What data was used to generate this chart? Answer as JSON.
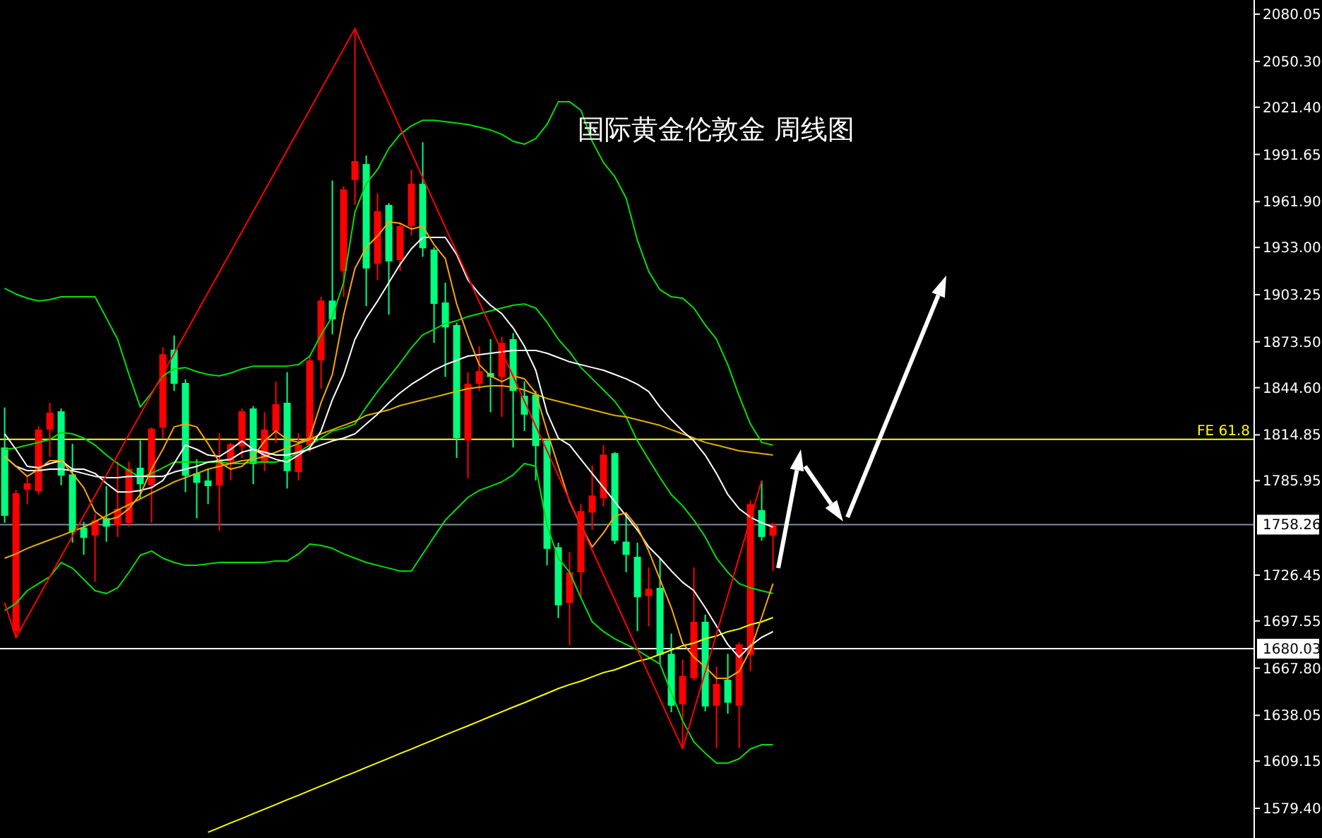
{
  "chart_data": {
    "type": "candlestick",
    "title": "国际黄金伦敦金 周线图",
    "categories": [
      null,
      null,
      null,
      null,
      null,
      null,
      null,
      null,
      null,
      null,
      null,
      null,
      null,
      null,
      null,
      null,
      null,
      null,
      null,
      null,
      null,
      null,
      null,
      null,
      null,
      null,
      null,
      null,
      null,
      null,
      null,
      null,
      null,
      null,
      null,
      null,
      null,
      null,
      null,
      null,
      null,
      null,
      null,
      null,
      null,
      null,
      null,
      null,
      null,
      null,
      null,
      null,
      null,
      null,
      null,
      null,
      null,
      null,
      null,
      null,
      null,
      null,
      null,
      null,
      null,
      null,
      null,
      null,
      null
    ],
    "ohlc": [
      [
        1806.9,
        1832.1,
        1759.4,
        1763.8
      ],
      [
        1691.1,
        1780.2,
        1686.6,
        1778.1
      ],
      [
        1780.2,
        1789.1,
        1771.2,
        1784.3
      ],
      [
        1779.3,
        1820.2,
        1777.2,
        1818.2
      ],
      [
        1818.2,
        1835.1,
        1801.0,
        1828.9
      ],
      [
        1829.7,
        1831.5,
        1783.1,
        1789.1
      ],
      [
        1789.9,
        1809.2,
        1746.9,
        1753.4
      ],
      [
        1756.4,
        1760.0,
        1739.2,
        1749.9
      ],
      [
        1751.4,
        1765.3,
        1722.2,
        1760.9
      ],
      [
        1762.3,
        1782.5,
        1747.5,
        1757.0
      ],
      [
        1757.9,
        1798.0,
        1750.5,
        1768.3
      ],
      [
        1759.4,
        1798.0,
        1757.0,
        1793.5
      ],
      [
        1794.1,
        1811.3,
        1774.2,
        1783.7
      ],
      [
        1783.1,
        1819.5,
        1759.4,
        1818.8
      ],
      [
        1819.4,
        1870.1,
        1812.8,
        1865.7
      ],
      [
        1868.6,
        1877.5,
        1842.5,
        1847.0
      ],
      [
        1847.6,
        1849.9,
        1778.7,
        1789.1
      ],
      [
        1790.6,
        1799.5,
        1762.3,
        1784.6
      ],
      [
        1786.1,
        1793.5,
        1771.2,
        1782.5
      ],
      [
        1783.1,
        1815.8,
        1754.3,
        1799.5
      ],
      [
        1798.0,
        1809.9,
        1786.1,
        1809.0
      ],
      [
        1807.5,
        1831.5,
        1800.3,
        1829.7
      ],
      [
        1831.5,
        1833.0,
        1783.7,
        1796.5
      ],
      [
        1798.0,
        1829.1,
        1792.0,
        1818.2
      ],
      [
        1817.3,
        1848.5,
        1809.9,
        1834.2
      ],
      [
        1835.1,
        1854.4,
        1781.0,
        1792.0
      ],
      [
        1791.4,
        1815.8,
        1786.1,
        1808.4
      ],
      [
        1808.4,
        1865.4,
        1803.9,
        1861.8
      ],
      [
        1861.8,
        1901.9,
        1844.0,
        1899.5
      ],
      [
        1899.5,
        1975.2,
        1878.2,
        1887.6
      ],
      [
        1918.2,
        1971.6,
        1901.9,
        1969.6
      ],
      [
        1975.5,
        2071.1,
        1959.8,
        1987.4
      ],
      [
        1985.6,
        1991.0,
        1896.0,
        1919.7
      ],
      [
        1922.7,
        1967.2,
        1912.3,
        1955.9
      ],
      [
        1959.8,
        1961.0,
        1890.6,
        1924.2
      ],
      [
        1925.1,
        1947.9,
        1918.2,
        1946.4
      ],
      [
        1946.4,
        1982.1,
        1940.5,
        1973.2
      ],
      [
        1973.2,
        1999.3,
        1927.1,
        1932.5
      ],
      [
        1931.6,
        1933.0,
        1872.8,
        1897.4
      ],
      [
        1898.3,
        1910.8,
        1851.4,
        1882.6
      ],
      [
        1884.1,
        1885.5,
        1800.3,
        1812.8
      ],
      [
        1811.3,
        1854.4,
        1787.6,
        1847.0
      ],
      [
        1847.0,
        1870.7,
        1842.5,
        1855.0
      ],
      [
        1853.8,
        1875.2,
        1829.1,
        1851.4
      ],
      [
        1851.4,
        1876.7,
        1826.2,
        1872.8
      ],
      [
        1875.2,
        1879.0,
        1806.9,
        1842.5
      ],
      [
        1839.5,
        1848.5,
        1817.3,
        1827.6
      ],
      [
        1840.2,
        1842.5,
        1786.1,
        1807.8
      ],
      [
        1811.3,
        1812.2,
        1732.6,
        1743.0
      ],
      [
        1744.0,
        1746.9,
        1699.4,
        1707.4
      ],
      [
        1708.9,
        1741.0,
        1682.2,
        1728.2
      ],
      [
        1728.2,
        1771.3,
        1711.9,
        1766.8
      ],
      [
        1765.9,
        1795.6,
        1754.9,
        1776.6
      ],
      [
        1774.8,
        1808.4,
        1769.8,
        1802.4
      ],
      [
        1803.3,
        1803.9,
        1746.0,
        1748.1
      ],
      [
        1747.5,
        1765.9,
        1728.2,
        1739.2
      ],
      [
        1738.0,
        1746.9,
        1691.1,
        1712.5
      ],
      [
        1713.3,
        1731.2,
        1694.1,
        1717.8
      ],
      [
        1718.4,
        1737.1,
        1670.3,
        1676.2
      ],
      [
        1676.8,
        1689.6,
        1640.0,
        1644.1
      ],
      [
        1645.0,
        1673.2,
        1616.8,
        1662.9
      ],
      [
        1661.4,
        1731.2,
        1659.9,
        1697.0
      ],
      [
        1697.0,
        1701.5,
        1640.6,
        1643.6
      ],
      [
        1644.1,
        1668.8,
        1617.4,
        1657.8
      ],
      [
        1660.5,
        1676.8,
        1639.1,
        1646.0
      ],
      [
        1644.1,
        1684.0,
        1617.4,
        1682.8
      ],
      [
        1676.2,
        1773.6,
        1665.8,
        1771.2
      ],
      [
        1767.4,
        1786.1,
        1748.1,
        1750.5
      ],
      [
        1751.3,
        1759.4,
        1729.1,
        1758.3
      ]
    ],
    "colors": [
      "#00ff7f",
      "#ff0000",
      "#ff0000",
      "#ff0000",
      "#ff0000",
      "#00ff7f",
      "#00ff7f",
      "#00ff7f",
      "#ff0000",
      "#00ff7f",
      "#ff0000",
      "#ff0000",
      "#00ff7f",
      "#ff0000",
      "#ff0000",
      "#00ff7f",
      "#00ff7f",
      "#00ff7f",
      "#00ff7f",
      "#ff0000",
      "#ff0000",
      "#ff0000",
      "#00ff7f",
      "#ff0000",
      "#ff0000",
      "#00ff7f",
      "#ff0000",
      "#ff0000",
      "#ff0000",
      "#00ff7f",
      "#ff0000",
      "#ff0000",
      "#00ff7f",
      "#ff0000",
      "#00ff7f",
      "#ff0000",
      "#ff0000",
      "#00ff7f",
      "#00ff7f",
      "#00ff7f",
      "#00ff7f",
      "#ff0000",
      "#ff0000",
      "#00ff7f",
      "#ff0000",
      "#00ff7f",
      "#00ff7f",
      "#00ff7f",
      "#00ff7f",
      "#00ff7f",
      "#ff0000",
      "#ff0000",
      "#ff0000",
      "#ff0000",
      "#00ff7f",
      "#00ff7f",
      "#00ff7f",
      "#ff0000",
      "#00ff7f",
      "#00ff7f",
      "#ff0000",
      "#ff0000",
      "#00ff7f",
      "#ff0000",
      "#00ff7f",
      "#ff0000",
      "#ff0000",
      "#00ff7f",
      "#ff0000"
    ],
    "series": [
      {
        "type": "line",
        "color": "#00e000",
        "values": [
          1907.2,
          1903.6,
          1901.0,
          1899.2,
          1900.1,
          1901.9,
          1901.9,
          1901.9,
          1901.9,
          1888.5,
          1875.1,
          1852.9,
          1832.4,
          1841.3,
          1852.0,
          1856.4,
          1857.3,
          1854.7,
          1852.9,
          1852.0,
          1853.8,
          1856.4,
          1858.2,
          1858.2,
          1858.2,
          1858.2,
          1859.1,
          1864.5,
          1877.9,
          1889.4,
          1910.8,
          1955.3,
          1973.2,
          1982.1,
          1995.4,
          2004.3,
          2009.7,
          2013.2,
          2013.2,
          2012.3,
          2011.4,
          2010.5,
          2008.8,
          2007.0,
          2004.3,
          1999.9,
          1998.1,
          2001.6,
          2010.5,
          2024.8,
          2024.8,
          2019.5,
          1999.9,
          1986.5,
          1977.6,
          1964.2,
          1937.5,
          1917.9,
          1906.3,
          1901.9,
          1901.0,
          1894.8,
          1884.1,
          1875.1,
          1859.1,
          1839.5,
          1821.7,
          1810.1,
          1808.4
        ]
      },
      {
        "type": "line",
        "color": "#00e000",
        "values": [
          1805.7,
          1806.6,
          1808.4,
          1810.1,
          1811.9,
          1816.4,
          1815.5,
          1812.8,
          1808.4,
          1802.1,
          1796.8,
          1792.3,
          1787.9,
          1790.5,
          1794.1,
          1797.7,
          1797.7,
          1797.7,
          1797.7,
          1797.7,
          1796.8,
          1796.8,
          1797.7,
          1797.7,
          1797.7,
          1799.4,
          1803.9,
          1808.4,
          1812.8,
          1817.3,
          1819.0,
          1821.7,
          1832.4,
          1842.2,
          1851.1,
          1860.1,
          1869.8,
          1877.9,
          1881.4,
          1885.0,
          1886.8,
          1889.4,
          1891.2,
          1893.0,
          1894.8,
          1896.6,
          1897.4,
          1894.8,
          1885.9,
          1875.1,
          1867.1,
          1857.3,
          1850.2,
          1843.1,
          1836.0,
          1826.2,
          1811.0,
          1799.4,
          1787.9,
          1777.2,
          1770.1,
          1761.1,
          1750.5,
          1737.1,
          1728.2,
          1721.1,
          1718.4,
          1716.6,
          1714.8
        ]
      },
      {
        "type": "line",
        "color": "#00e000",
        "values": [
          1704.1,
          1708.6,
          1716.6,
          1721.1,
          1725.5,
          1734.4,
          1730.8,
          1723.7,
          1716.6,
          1714.8,
          1718.4,
          1728.2,
          1738.9,
          1741.6,
          1737.1,
          1734.4,
          1732.6,
          1732.6,
          1733.5,
          1734.4,
          1734.4,
          1734.4,
          1734.4,
          1734.4,
          1735.3,
          1735.3,
          1739.8,
          1746.0,
          1745.1,
          1743.3,
          1739.8,
          1737.1,
          1734.4,
          1732.6,
          1730.8,
          1729.0,
          1729.0,
          1739.8,
          1750.5,
          1761.1,
          1768.3,
          1775.4,
          1779.8,
          1782.5,
          1785.2,
          1789.6,
          1796.8,
          1795.0,
          1757.6,
          1737.1,
          1728.2,
          1712.1,
          1697.0,
          1690.8,
          1686.3,
          1682.7,
          1679.2,
          1674.7,
          1670.3,
          1652.4,
          1634.6,
          1621.3,
          1614.2,
          1607.9,
          1607.9,
          1610.6,
          1616.8,
          1619.5,
          1619.5
        ]
      },
      {
        "type": "line",
        "color": "#e0b000",
        "values": [
          1737.1,
          1739.8,
          1743.3,
          1746.0,
          1748.7,
          1751.3,
          1754.0,
          1756.7,
          1760.2,
          1763.8,
          1767.4,
          1770.9,
          1774.5,
          1778.1,
          1781.6,
          1785.2,
          1787.9,
          1790.5,
          1793.2,
          1795.0,
          1796.8,
          1798.6,
          1799.4,
          1801.2,
          1803.9,
          1806.6,
          1809.3,
          1811.9,
          1815.5,
          1818.1,
          1820.8,
          1823.5,
          1827.1,
          1828.9,
          1830.6,
          1833.3,
          1835.1,
          1836.9,
          1838.6,
          1840.4,
          1842.2,
          1844.0,
          1844.9,
          1845.8,
          1845.8,
          1844.9,
          1843.1,
          1840.4,
          1837.8,
          1836.0,
          1834.2,
          1832.4,
          1830.6,
          1828.9,
          1827.1,
          1826.2,
          1824.4,
          1822.6,
          1820.8,
          1818.1,
          1815.5,
          1812.8,
          1810.1,
          1808.4,
          1806.6,
          1804.8,
          1803.9,
          1803.0,
          1802.1
        ]
      },
      {
        "type": "line",
        "color": "#ffff00",
        "values": [
          null,
          null,
          null,
          null,
          null,
          null,
          null,
          null,
          null,
          null,
          null,
          null,
          null,
          null,
          null,
          null,
          null,
          null,
          1564.3,
          1567.2,
          1570.2,
          1573.0,
          1576.0,
          1578.9,
          1581.8,
          1584.8,
          1587.6,
          1590.6,
          1593.5,
          1596.4,
          1599.4,
          1602.2,
          1605.2,
          1608.1,
          1611.0,
          1614.0,
          1616.8,
          1619.8,
          1622.7,
          1625.7,
          1628.6,
          1631.4,
          1634.4,
          1637.3,
          1640.3,
          1643.2,
          1646.0,
          1649.0,
          1651.9,
          1654.9,
          1657.4,
          1659.6,
          1662.3,
          1665.0,
          1666.7,
          1669.4,
          1672.1,
          1673.8,
          1676.5,
          1679.2,
          1681.9,
          1683.6,
          1686.3,
          1688.1,
          1690.8,
          1692.5,
          1695.2,
          1697.0,
          1699.7
        ]
      },
      {
        "type": "line",
        "color": "#ffffff",
        "values": [
          1815.5,
          1805.7,
          1795.0,
          1794.1,
          1796.8,
          1798.6,
          1793.2,
          1793.2,
          1790.5,
          1784.3,
          1778.9,
          1778.9,
          1779.8,
          1781.6,
          1786.1,
          1796.8,
          1808.4,
          1805.7,
          1802.1,
          1801.2,
          1805.7,
          1811.0,
          1805.7,
          1802.1,
          1799.4,
          1797.7,
          1802.1,
          1806.6,
          1817.3,
          1836.9,
          1852.9,
          1875.1,
          1888.5,
          1899.2,
          1910.8,
          1922.4,
          1932.2,
          1939.3,
          1939.3,
          1939.3,
          1928.6,
          1912.6,
          1903.7,
          1896.6,
          1891.2,
          1882.3,
          1870.7,
          1855.6,
          1828.9,
          1812.8,
          1808.4,
          1799.4,
          1790.5,
          1781.6,
          1772.7,
          1763.8,
          1754.9,
          1744.2,
          1737.1,
          1729.1,
          1721.9,
          1716.6,
          1705.9,
          1694.3,
          1682.7,
          1674.7,
          1681.9,
          1687.2,
          1690.8
        ]
      },
      {
        "type": "line",
        "color": "#ffffff",
        "values": [
          1801.2,
          1795.0,
          1792.3,
          1792.3,
          1793.2,
          1793.2,
          1792.3,
          1790.5,
          1788.7,
          1787.9,
          1787.9,
          1788.7,
          1788.7,
          1788.7,
          1788.7,
          1791.4,
          1793.2,
          1795.0,
          1797.7,
          1798.6,
          1799.4,
          1803.9,
          1805.7,
          1803.9,
          1802.1,
          1802.1,
          1803.9,
          1805.7,
          1808.4,
          1811.0,
          1812.8,
          1815.5,
          1821.7,
          1827.9,
          1835.1,
          1841.3,
          1846.7,
          1851.1,
          1855.6,
          1859.1,
          1861.8,
          1864.5,
          1865.4,
          1866.3,
          1867.2,
          1868.1,
          1868.1,
          1868.1,
          1866.3,
          1863.6,
          1860.9,
          1859.1,
          1857.3,
          1855.6,
          1852.9,
          1850.2,
          1846.7,
          1842.2,
          1832.4,
          1824.4,
          1817.3,
          1811.0,
          1802.1,
          1790.5,
          1777.2,
          1768.3,
          1762.9,
          1759.4,
          1756.7
        ]
      },
      {
        "type": "line",
        "color": "#ffa500",
        "values": [
          1801.2,
          1795.0,
          1788.7,
          1793.2,
          1798.6,
          1798.6,
          1790.5,
          1781.6,
          1766.5,
          1761.1,
          1762.9,
          1768.3,
          1777.2,
          1793.2,
          1805.7,
          1819.9,
          1821.7,
          1819.9,
          1809.3,
          1797.7,
          1793.2,
          1795.0,
          1801.2,
          1811.0,
          1817.3,
          1811.9,
          1810.1,
          1812.8,
          1835.1,
          1852.9,
          1890.3,
          1919.7,
          1933.1,
          1940.2,
          1949.1,
          1948.2,
          1944.6,
          1946.4,
          1934.8,
          1925.9,
          1897.4,
          1877.0,
          1859.1,
          1852.0,
          1848.4,
          1852.0,
          1850.2,
          1841.3,
          1817.3,
          1795.0,
          1772.7,
          1757.6,
          1744.2,
          1753.1,
          1763.8,
          1765.6,
          1756.7,
          1741.6,
          1723.7,
          1705.9,
          1683.6,
          1674.7,
          1668.5,
          1661.4,
          1661.4,
          1665.8,
          1679.2,
          1699.8,
          1721.1
        ]
      },
      {
        "type": "line",
        "color": "#ff0000",
        "values": [
          1709.0,
          1687.0,
          1699.8,
          1712.6,
          1725.4,
          1738.2,
          1751.0,
          1763.8,
          1776.6,
          1789.4,
          1802.2,
          1815.0,
          1827.8,
          1840.6,
          1853.4,
          1866.2,
          1879.0,
          1891.8,
          1904.6,
          1917.4,
          1930.2,
          1943.0,
          1955.8,
          1968.6,
          1981.4,
          1994.2,
          2007.0,
          2019.8,
          2032.6,
          2045.4,
          2058.2,
          2071.0,
          2055.3,
          2039.7,
          2024.0,
          2008.4,
          1992.7,
          1977.0,
          1961.4,
          1945.7,
          1930.1,
          1914.4,
          1898.7,
          1883.1,
          1867.4,
          1851.8,
          1836.1,
          1820.4,
          1804.8,
          1789.1,
          1773.5,
          1757.8,
          1742.1,
          1726.5,
          1710.8,
          1695.2,
          1679.5,
          1663.8,
          1648.2,
          1632.5,
          1617.0,
          1641.1,
          1665.3,
          1689.4,
          1713.6,
          1737.7,
          1761.9,
          1786.0,
          null
        ]
      }
    ],
    "ylim": [
      1560.7,
      2089.0
    ],
    "yticks": [
      2080.05,
      {
        "value": 2050.3,
        "label": "2050.30"
      },
      {
        "value": 2021.4,
        "label": "2021.40"
      },
      1991.65,
      {
        "value": 1961.9,
        "label": "1961.90"
      },
      {
        "value": 1933.0,
        "label": "1933.00"
      },
      1903.25,
      {
        "value": 1873.5,
        "label": "1873.50"
      },
      {
        "value": 1844.6,
        "label": "1844.60"
      },
      1814.85,
      1785.95,
      1726.45,
      1697.55,
      {
        "value": 1667.8,
        "label": "1667.80"
      },
      1638.05,
      1609.15,
      {
        "value": 1579.4,
        "label": "1579.40"
      }
    ],
    "ref_lines": [
      {
        "axis": "y",
        "value": 1812,
        "label": "FE 61.8",
        "color": "#ffff00"
      },
      {
        "axis": "y",
        "value": 1758.26,
        "label": "1758.26",
        "color": "#8090a0"
      },
      {
        "axis": "y",
        "value": 1680.03,
        "label": "1680.03",
        "color": "#ffffff"
      }
    ],
    "grid": false
  }
}
